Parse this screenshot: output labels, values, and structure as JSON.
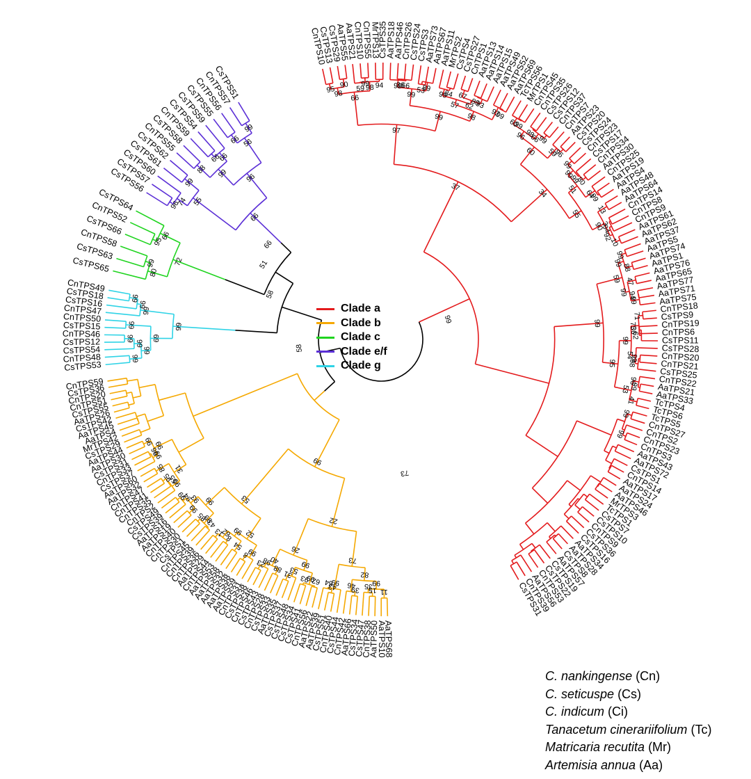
{
  "colors": {
    "clade_a": "#e31a1c",
    "clade_b": "#f5a800",
    "clade_c": "#1fd41f",
    "clade_ef": "#5b2fd6",
    "clade_g": "#2fd3e6",
    "backbone": "#000000"
  },
  "legend": [
    {
      "label": "Clade a",
      "color": "#e31a1c"
    },
    {
      "label": "Clade b",
      "color": "#f5a800"
    },
    {
      "label": "Clade c",
      "color": "#1fd41f"
    },
    {
      "label": "Clade e/f",
      "color": "#5b2fd6"
    },
    {
      "label": "Clade g",
      "color": "#2fd3e6"
    }
  ],
  "species": [
    {
      "name": "C. nankingense",
      "abbr": "(Cn)"
    },
    {
      "name": "C. seticuspe",
      "abbr": "(Cs)"
    },
    {
      "name": "C. indicum",
      "abbr": "(Ci)"
    },
    {
      "name": "Tanacetum cinerariifolium",
      "abbr": "(Tc)"
    },
    {
      "name": "Matricaria recutita",
      "abbr": "(Mr)"
    },
    {
      "name": "Artemisia annua",
      "abbr": "(Aa)"
    }
  ],
  "tree": {
    "backbone_bootstrap": [
      "51",
      "66",
      "58",
      "58",
      "99",
      "73"
    ],
    "clades": [
      {
        "id": "clade_a",
        "leaves": [
          "CnTPS10",
          "CsTPS13",
          "CsTPS29",
          "AaTPS55",
          "AaTPS21",
          "CnTPS10",
          "CnTPS55",
          "MrTPS13",
          "CsTPS35",
          "AaTPS18",
          "AaTPS46",
          "CnTPS26",
          "CsTPS24",
          "CsTPS3",
          "AaTPS73",
          "AaTPS67",
          "AaTPS11",
          "MrTPS2",
          "CsTPS4",
          "CsTPS27",
          "CnTPS1",
          "AaTPS13",
          "AaTPS14",
          "AaTPS15",
          "AaTPS49",
          "AaTPS52",
          "AaTPS69",
          "TcTPS56",
          "MrTPS1",
          "CnTPS45",
          "CnTPS35",
          "CsTPS26",
          "CsTPS12",
          "CnTPS37",
          "CnTPS7",
          "AaTPS23",
          "CsTPS20",
          "CsTPS24",
          "CnTPS23",
          "CsTPS17",
          "CnTPS34",
          "AaTPS30",
          "CnTPS25",
          "AaTPS19",
          "AaTPS4",
          "AaTPS48",
          "AaTPS64",
          "CnTPS14",
          "CnTPS8",
          "CnTPS9",
          "AaTPS61",
          "AaTPS62",
          "AaTPS37",
          "AaTPS5",
          "AaTPS74",
          "AaTPS1",
          "AaTPS76",
          "AaTPS65",
          "AaTPS77",
          "AaTPS71",
          "AaTPS75",
          "CnTPS18",
          "CsTPS9",
          "CnTPS19",
          "CnTPS6",
          "CsTPS11",
          "CsTPS28",
          "CnTPS20",
          "CnTPS21",
          "CsTPS25",
          "CnTPS22",
          "AaTPS21",
          "AaTPS33",
          "TcTPS4",
          "TcTPS6",
          "TcTPS5",
          "CnTPS27",
          "CnTPS2",
          "CnTPS23",
          "CnTPS3",
          "AaTPS43",
          "AaTPS72",
          "CsTPS1",
          "CnTPS14",
          "AaTPS17",
          "AaTPS24",
          "AaTPS46",
          "MrTPS3",
          "TcTPS1",
          "CsTPS7",
          "CsTPS10",
          "CnTPS9",
          "CsTPS36",
          "CsTPS16",
          "AaTPS34",
          "AaTPS28",
          "CsTPS8",
          "AaTPS57",
          "CsTPS19",
          "CsTPS22",
          "CnTPS53",
          "AaTPS56",
          "CnTPS39",
          "CsTPS31"
        ],
        "bootstrap": [
          "95",
          "90",
          "98",
          "99",
          "59",
          "94",
          "98",
          "66",
          "36",
          "66",
          "99",
          "53",
          "89",
          "99",
          "84",
          "99",
          "67",
          "80",
          "93",
          "62",
          "57",
          "99",
          "92",
          "98",
          "99",
          "97",
          "99",
          "60",
          "98",
          "99",
          "66",
          "96",
          "96",
          "59",
          "60",
          "99",
          "80",
          "99",
          "99",
          "99",
          "64",
          "51",
          "13",
          "3",
          "94",
          "10",
          "92",
          "90",
          "55",
          "34",
          "37",
          "99",
          "88",
          "99",
          "47",
          "94",
          "99",
          "99",
          "59",
          "71",
          "36",
          "62",
          "75",
          "99",
          "98",
          "54",
          "99",
          "99",
          "96",
          "41",
          "53",
          "95",
          "99",
          "99",
          "99"
        ]
      },
      {
        "id": "clade_b",
        "leaves": [
          "AaTPS68",
          "AaTPS10",
          "AaTPS50",
          "CnTPS38",
          "CsTPS47",
          "CsTPS34",
          "AaTPS66",
          "CnTPS42",
          "CsTPS44",
          "CnTPS40",
          "CsTPS51",
          "AaTPS39",
          "AaTPS22",
          "CnTPS56",
          "CsTPS41",
          "CsTPS34",
          "CsTPS48",
          "CsTPS37",
          "AaTPS35",
          "CsTPS33",
          "CnTPS28",
          "CsTPS43",
          "CnTPS46",
          "CsTPS38",
          "CnTPS31",
          "AaTPS59",
          "AaTPS38",
          "AaTPS32",
          "AaTPS58",
          "AaTPS53",
          "CnTPS44",
          "AaTPS29",
          "CnTPS36",
          "CnTPS39",
          "CnTPS45",
          "CsTPS1",
          "CnTPS30",
          "CnTPS40",
          "AaTPS19",
          "AaTPS16",
          "CsTPS39",
          "CsTPS49",
          "CnTPS2",
          "CnTPS35",
          "CnTPS41",
          "CnTPS47",
          "AaTPS32",
          "AaTPS60",
          "CsTPS37",
          "CnTPS33",
          "CsTPS31",
          "AaTPS30",
          "AaTPS44",
          "CsTPS29",
          "MrTPS42",
          "AaTPS4",
          "AaTPS45",
          "CsTPS42",
          "AaTPS26",
          "CsTPS55",
          "CnTPS51",
          "CnTPS20",
          "CsTPS36",
          "CnTPS59"
        ],
        "bootstrap": [
          "11",
          "15",
          "35",
          "99",
          "39",
          "46",
          "82",
          "43",
          "64",
          "99",
          "73",
          "62",
          "93",
          "99",
          "31",
          "53",
          "99",
          "88",
          "23",
          "98",
          "40",
          "26",
          "22",
          "8",
          "99",
          "54",
          "8",
          "13",
          "62",
          "99",
          "52",
          "43",
          "85",
          "99",
          "99",
          "99",
          "94",
          "93",
          "99",
          "53",
          "99",
          "95",
          "55",
          "99",
          "85",
          "31",
          "96",
          "99",
          "99",
          "99"
        ]
      },
      {
        "id": "clade_c",
        "leaves": [
          "CsTPS65",
          "CsTPS63",
          "CnTPS58",
          "CsTPS66",
          "CnTPS52",
          "CsTPS64"
        ],
        "bootstrap": [
          "99",
          "80",
          "95",
          "66",
          "72"
        ]
      },
      {
        "id": "clade_ef",
        "leaves": [
          "CsTPS56",
          "CsTPS57",
          "CsTPS60",
          "CsTPS61",
          "CsTPS62",
          "CnTPS55",
          "CsTPS58",
          "CnTPS59",
          "CsTPS54",
          "CsTPS59",
          "CsTPS55",
          "CnTPS56",
          "CnTPS57",
          "CsTPS51"
        ],
        "bootstrap": [
          "96",
          "74",
          "99",
          "55",
          "88",
          "66",
          "66",
          "99",
          "66",
          "99",
          "56",
          "96",
          "66"
        ]
      },
      {
        "id": "clade_g",
        "leaves": [
          "CsTPS53",
          "CnTPS48",
          "CsTPS54",
          "CsTPS12",
          "CnTPS46",
          "CsTPS15",
          "CnTPS50",
          "CnTPS47",
          "CsTPS16",
          "CsTPS18",
          "CnTPS49"
        ],
        "bootstrap": [
          "66",
          "66",
          "66",
          "66",
          "66",
          "69",
          "66",
          "66",
          "99",
          "99",
          "84"
        ]
      }
    ]
  }
}
